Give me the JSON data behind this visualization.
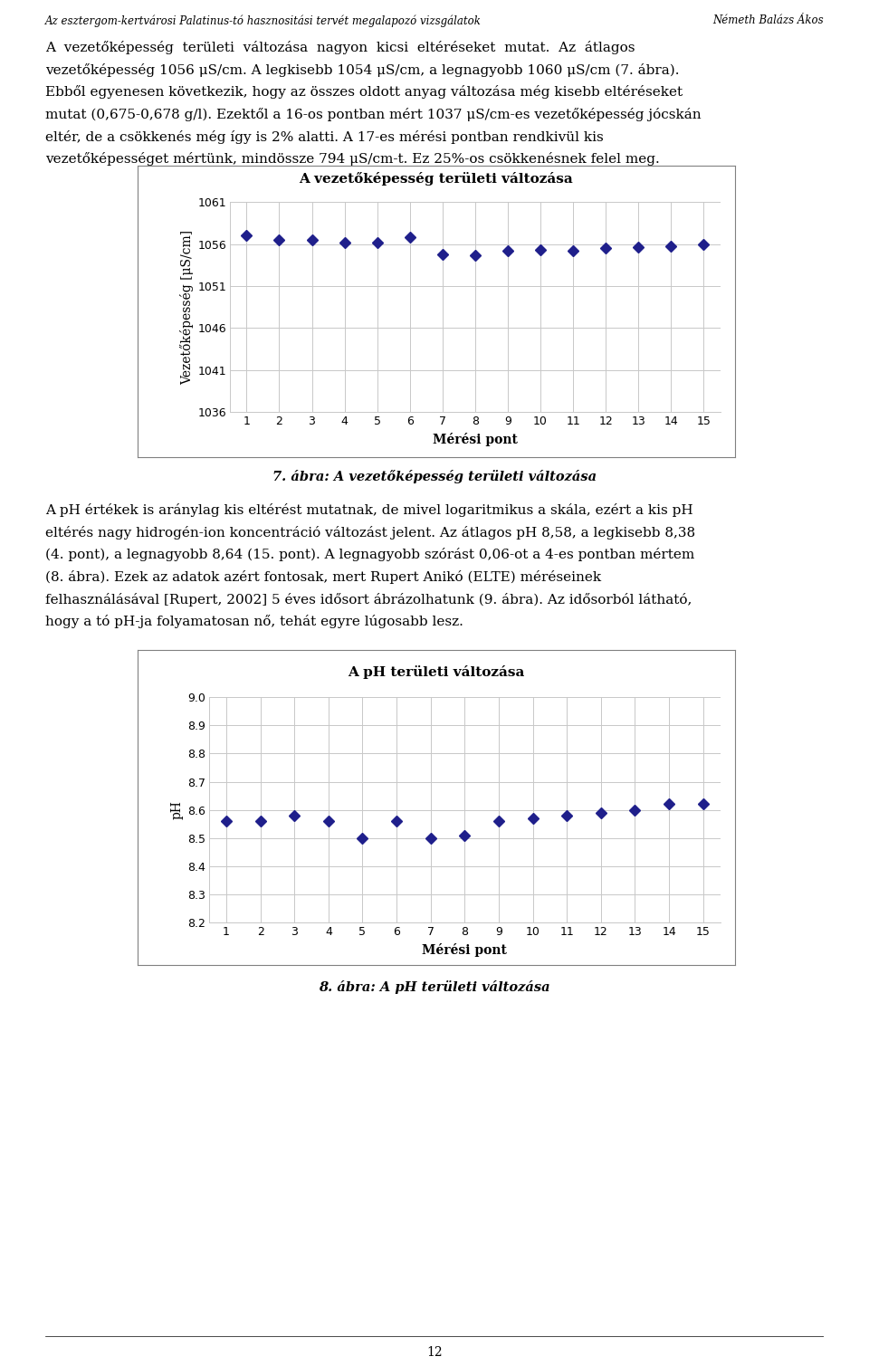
{
  "chart1": {
    "title": "A vezetőképesség területi változása",
    "x": [
      1,
      2,
      3,
      4,
      5,
      6,
      7,
      8,
      9,
      10,
      11,
      12,
      13,
      14,
      15
    ],
    "y": [
      1057.0,
      1056.5,
      1056.5,
      1056.2,
      1056.2,
      1056.8,
      1054.8,
      1054.7,
      1055.2,
      1055.3,
      1055.2,
      1055.5,
      1055.6,
      1055.7,
      1056.0
    ],
    "ylabel": "Vezetőképesség [μS/cm]",
    "xlabel": "Mérési pont",
    "ylim": [
      1036,
      1061
    ],
    "yticks": [
      1036,
      1041,
      1046,
      1051,
      1056,
      1061
    ],
    "xticks": [
      1,
      2,
      3,
      4,
      5,
      6,
      7,
      8,
      9,
      10,
      11,
      12,
      13,
      14,
      15
    ],
    "marker_color": "#1F1F8B",
    "caption": "7. ábra: A vezetőképesség területi változása"
  },
  "chart2": {
    "title": "A pH területi változása",
    "x": [
      1,
      2,
      3,
      4,
      5,
      6,
      7,
      8,
      9,
      10,
      11,
      12,
      13,
      14,
      15
    ],
    "y": [
      8.56,
      8.56,
      8.58,
      8.56,
      8.5,
      8.56,
      8.5,
      8.51,
      8.56,
      8.57,
      8.58,
      8.59,
      8.6,
      8.62,
      8.62
    ],
    "ylabel": "pH",
    "xlabel": "Mérési pont",
    "ylim": [
      8.2,
      9.0
    ],
    "yticks": [
      8.2,
      8.3,
      8.4,
      8.5,
      8.6,
      8.7,
      8.8,
      8.9,
      9.0
    ],
    "xticks": [
      1,
      2,
      3,
      4,
      5,
      6,
      7,
      8,
      9,
      10,
      11,
      12,
      13,
      14,
      15
    ],
    "marker_color": "#1F1F8B",
    "caption": "8. ábra: A pH területi változása"
  },
  "page_header_left": "Az esztergom-kertvárosi Palatinus-tó hasznositási tervét megalapozó vizsgálatok",
  "page_header_right": "Németh Balázs Ákos",
  "body1_lines": [
    "A  vezetőképesség  területi  változása  nagyon  kicsi  eltéréseket  mutat.  Az  átlagos",
    "vezetőképesség 1056 μS/cm. A legkisebb 1054 μS/cm, a legnagyobb 1060 μS/cm (7. ábra).",
    "Ebből egyenesen következik, hogy az összes oldott anyag változása még kisebb eltéréseket",
    "mutat (0,675-0,678 g/l). Ezektől a 16-os pontban mért 1037 μS/cm-es vezetőképesség jócskán",
    "eltér, de a csökkenés még így is 2% alatti. A 17-es mérési pontban rendkivül kis",
    "vezetőképességet mértünk, mindössze 794 μS/cm-t. Ez 25%-os csökkenésnek felel meg."
  ],
  "body2_lines": [
    "A pH értékek is aránylag kis eltérést mutatnak, de mivel logaritmikus a skála, ezért a kis pH",
    "eltérés nagy hidrogén-ion koncentráció változást jelent. Az átlagos pH 8,58, a legkisebb 8,38",
    "(4. pont), a legnagyobb 8,64 (15. pont). A legnagyobb szórást 0,06-ot a 4-es pontban mértem",
    "(8. ábra). Ezek az adatok azért fontosak, mert Rupert Anikó (ELTE) méréseinek",
    "felhasználásával [Rupert, 2002] 5 éves idősort ábrázolhatunk (9. ábra). Az idősorból látható,",
    "hogy a tó pH-ja folyamatosan nő, tehát egyre lúgosabb lesz."
  ],
  "page_number": "12",
  "bg_color": "#ffffff",
  "text_color": "#000000",
  "grid_color": "#c8c8c8",
  "border_color": "#808080",
  "header_fontsize": 8.5,
  "body_fontsize": 11,
  "caption_fontsize": 10.5,
  "title_fontsize": 11,
  "axis_label_fontsize": 10,
  "tick_fontsize": 9
}
